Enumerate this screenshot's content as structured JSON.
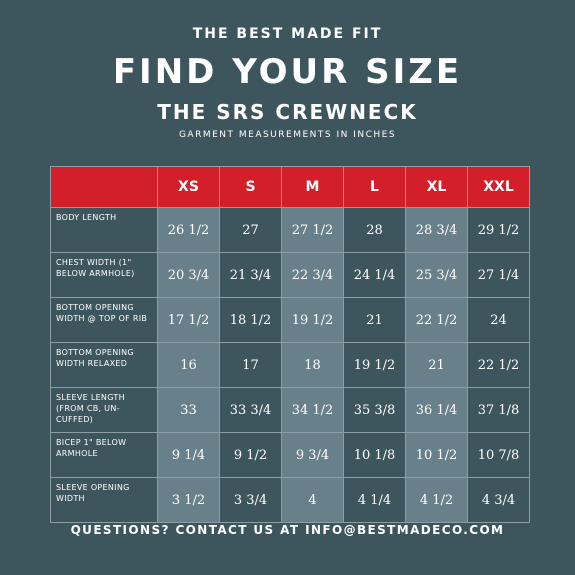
{
  "header": {
    "eyebrow": "THE BEST MADE FIT",
    "title": "FIND YOUR SIZE",
    "subtitle": "THE SRS CREWNECK",
    "note": "GARMENT MEASUREMENTS IN INCHES"
  },
  "table": {
    "sizes": [
      "XS",
      "S",
      "M",
      "L",
      "XL",
      "XXL"
    ],
    "rows": [
      {
        "label": "BODY LENGTH",
        "values": [
          "26 1/2",
          "27",
          "27 1/2",
          "28",
          "28 3/4",
          "29 1/2"
        ]
      },
      {
        "label": "CHEST WIDTH (1\" BELOW ARMHOLE)",
        "values": [
          "20 3/4",
          "21 3/4",
          "22 3/4",
          "24 1/4",
          "25 3/4",
          "27 1/4"
        ]
      },
      {
        "label": "BOTTOM OPENING WIDTH @ TOP OF RIB",
        "values": [
          "17 1/2",
          "18 1/2",
          "19 1/2",
          "21",
          "22 1/2",
          "24"
        ]
      },
      {
        "label": "BOTTOM OPENING WIDTH RELAXED",
        "values": [
          "16",
          "17",
          "18",
          "19 1/2",
          "21",
          "22 1/2"
        ]
      },
      {
        "label": "SLEEVE LENGTH (FROM CB, UN-CUFFED)",
        "values": [
          "33",
          "33 3/4",
          "34 1/2",
          "35 3/8",
          "36 1/4",
          "37 1/8"
        ]
      },
      {
        "label": "BICEP 1\" BELOW ARMHOLE",
        "values": [
          "9 1/4",
          "9 1/2",
          "9 3/4",
          "10 1/8",
          "10 1/2",
          "10 7/8"
        ]
      },
      {
        "label": "SLEEVE OPENING WIDTH",
        "values": [
          "3 1/2",
          "3 3/4",
          "4",
          "4 1/4",
          "4 1/2",
          "4 3/4"
        ]
      }
    ]
  },
  "footer": {
    "text": "QUESTIONS? CONTACT US AT INFO@BESTMADECO.COM"
  },
  "colors": {
    "background": "#3d565e",
    "header_row": "#d21f2a",
    "shaded_column": "#68808a"
  }
}
